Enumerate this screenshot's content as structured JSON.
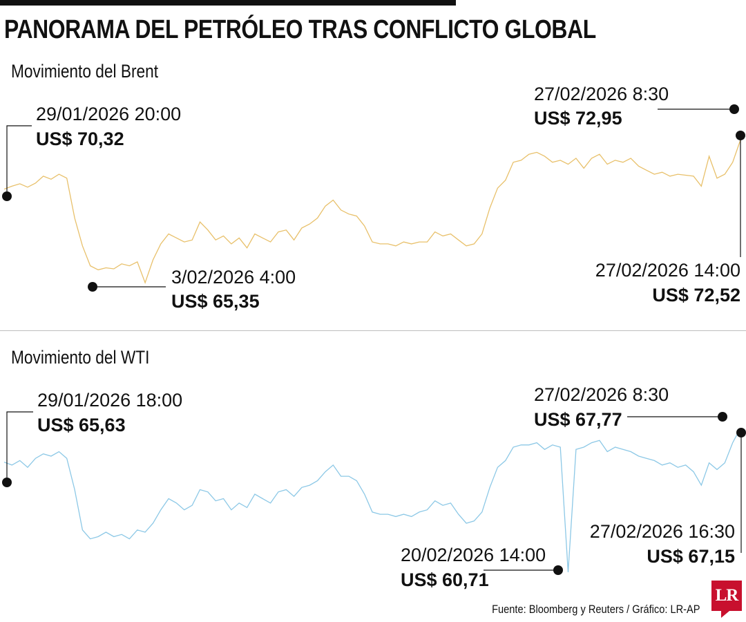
{
  "title": "PANORAMA DEL PETRÓLEO TRAS CONFLICTO GLOBAL",
  "source": "Fuente: Bloomberg y Reuters / Gráfico: LR-AP",
  "logo_text": "LR",
  "colors": {
    "brent": "#e8c06a",
    "wti": "#8cc8e6",
    "brand": "#c8102e",
    "marker": "#111111"
  },
  "chart_data": [
    {
      "type": "line",
      "subtitle": "Movimiento del Brent",
      "unit": "US$",
      "x_range": [
        "2026-01-29",
        "2026-02-27"
      ],
      "ylim": [
        64.8,
        73.3
      ],
      "series": [
        {
          "values": [
            70.05,
            70.2,
            70.32,
            70.15,
            70.35,
            70.7,
            70.55,
            70.8,
            70.6,
            68.6,
            67.2,
            66.2,
            66.0,
            66.1,
            66.05,
            66.3,
            66.2,
            66.4,
            65.35,
            66.5,
            67.3,
            67.8,
            67.6,
            67.4,
            67.5,
            68.4,
            68.0,
            67.5,
            67.7,
            67.3,
            67.6,
            67.1,
            67.8,
            67.6,
            67.4,
            67.9,
            68.0,
            67.5,
            68.1,
            68.3,
            68.6,
            69.2,
            69.5,
            69.0,
            68.8,
            68.7,
            68.2,
            67.4,
            67.3,
            67.3,
            67.2,
            67.4,
            67.3,
            67.4,
            67.4,
            67.9,
            67.7,
            67.8,
            67.5,
            67.2,
            67.3,
            67.8,
            69.1,
            70.1,
            70.5,
            71.4,
            71.5,
            71.8,
            71.9,
            71.7,
            71.4,
            71.5,
            71.3,
            71.6,
            71.1,
            71.6,
            71.8,
            71.3,
            71.5,
            71.4,
            71.6,
            71.2,
            71.0,
            70.8,
            70.9,
            70.7,
            70.8,
            70.75,
            70.7,
            70.2,
            71.7,
            70.6,
            70.8,
            71.4,
            72.52
          ]
        }
      ],
      "annotations": [
        {
          "date": "29/01/2026 20:00",
          "value": "US$ 70,32"
        },
        {
          "date": "3/02/2026 4:00",
          "value": "US$ 65,35"
        },
        {
          "date": "27/02/2026 8:30",
          "value": "US$ 72,95"
        },
        {
          "date": "27/02/2026 14:00",
          "value": "US$ 72,52"
        }
      ]
    },
    {
      "type": "line",
      "subtitle": "Movimiento del WTI",
      "unit": "US$",
      "x_range": [
        "2026-01-29",
        "2026-02-27"
      ],
      "ylim": [
        60.4,
        68.0
      ],
      "series": [
        {
          "values": [
            65.63,
            65.5,
            65.7,
            65.4,
            65.8,
            66.0,
            65.9,
            66.1,
            65.8,
            64.4,
            62.6,
            62.2,
            62.3,
            62.5,
            62.3,
            62.4,
            62.2,
            62.6,
            62.5,
            62.9,
            63.5,
            64.0,
            63.8,
            63.5,
            63.7,
            64.4,
            64.3,
            63.9,
            64.0,
            63.5,
            63.8,
            63.6,
            64.2,
            64.0,
            63.8,
            64.3,
            64.4,
            64.1,
            64.5,
            64.6,
            64.8,
            65.2,
            65.5,
            65.0,
            65.0,
            64.8,
            64.2,
            63.4,
            63.3,
            63.3,
            63.2,
            63.3,
            63.2,
            63.4,
            63.5,
            63.9,
            63.7,
            63.8,
            63.3,
            62.9,
            63.0,
            63.4,
            64.5,
            65.4,
            65.7,
            66.3,
            66.4,
            66.4,
            66.5,
            66.2,
            66.4,
            66.3,
            60.71,
            66.2,
            66.3,
            66.5,
            66.6,
            66.1,
            66.3,
            66.2,
            66.1,
            65.9,
            65.8,
            65.7,
            65.5,
            65.6,
            65.4,
            65.5,
            65.2,
            64.6,
            65.6,
            65.3,
            65.6,
            66.5,
            67.15
          ]
        }
      ],
      "annotations": [
        {
          "date": "29/01/2026 18:00",
          "value": "US$ 65,63"
        },
        {
          "date": "20/02/2026 14:00",
          "value": "US$ 60,71"
        },
        {
          "date": "27/02/2026 8:30",
          "value": "US$ 67,77"
        },
        {
          "date": "27/02/2026 16:30",
          "value": "US$ 67,15"
        }
      ]
    }
  ]
}
